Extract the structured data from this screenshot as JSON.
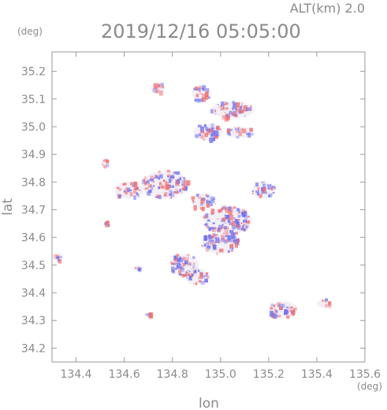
{
  "header": {
    "altitude": "ALT(km) 2.0",
    "datetime": "2019/12/16 05:05:00"
  },
  "axes": {
    "x_label": "lon",
    "y_label": "lat",
    "x_unit": "(deg)",
    "y_unit": "(deg)",
    "x_range": [
      134.3,
      135.6
    ],
    "y_range": [
      34.15,
      35.27
    ],
    "x_ticks": [
      134.4,
      134.6,
      134.8,
      135.0,
      135.2,
      135.4,
      135.6
    ],
    "x_tick_labels": [
      "134.4",
      "134.6",
      "134.8",
      "135.0",
      "135.2",
      "135.4",
      "135.6"
    ],
    "y_ticks": [
      34.2,
      34.3,
      34.4,
      34.5,
      34.6,
      34.7,
      34.8,
      34.9,
      35.0,
      35.1,
      35.2
    ],
    "y_tick_labels": [
      "34.2",
      "34.3",
      "34.4",
      "34.5",
      "34.6",
      "34.7",
      "34.8",
      "34.9",
      "35.0",
      "35.1",
      "35.2"
    ]
  },
  "colors": {
    "positive": "#f07070",
    "negative": "#7070f0",
    "axis": "#9a9a9a"
  },
  "echo_clusters": [
    {
      "lon": 134.74,
      "lat": 35.14,
      "rx": 0.03,
      "ry": 0.02
    },
    {
      "lon": 134.92,
      "lat": 35.12,
      "rx": 0.04,
      "ry": 0.03
    },
    {
      "lon": 135.05,
      "lat": 35.06,
      "rx": 0.09,
      "ry": 0.03
    },
    {
      "lon": 134.95,
      "lat": 34.98,
      "rx": 0.06,
      "ry": 0.03
    },
    {
      "lon": 135.08,
      "lat": 34.98,
      "rx": 0.06,
      "ry": 0.02
    },
    {
      "lon": 134.77,
      "lat": 34.79,
      "rx": 0.1,
      "ry": 0.05
    },
    {
      "lon": 134.62,
      "lat": 34.77,
      "rx": 0.06,
      "ry": 0.03
    },
    {
      "lon": 135.18,
      "lat": 34.77,
      "rx": 0.05,
      "ry": 0.03
    },
    {
      "lon": 134.93,
      "lat": 34.73,
      "rx": 0.05,
      "ry": 0.03
    },
    {
      "lon": 135.03,
      "lat": 34.66,
      "rx": 0.1,
      "ry": 0.05
    },
    {
      "lon": 135.0,
      "lat": 34.58,
      "rx": 0.08,
      "ry": 0.04
    },
    {
      "lon": 134.85,
      "lat": 34.5,
      "rx": 0.06,
      "ry": 0.04
    },
    {
      "lon": 134.9,
      "lat": 34.46,
      "rx": 0.05,
      "ry": 0.03
    },
    {
      "lon": 134.66,
      "lat": 34.49,
      "rx": 0.02,
      "ry": 0.01
    },
    {
      "lon": 135.26,
      "lat": 34.34,
      "rx": 0.06,
      "ry": 0.03
    },
    {
      "lon": 135.43,
      "lat": 34.36,
      "rx": 0.03,
      "ry": 0.015
    },
    {
      "lon": 134.7,
      "lat": 34.32,
      "rx": 0.015,
      "ry": 0.01
    },
    {
      "lon": 134.33,
      "lat": 34.53,
      "rx": 0.015,
      "ry": 0.015
    },
    {
      "lon": 134.52,
      "lat": 34.87,
      "rx": 0.015,
      "ry": 0.015
    },
    {
      "lon": 134.53,
      "lat": 34.65,
      "rx": 0.01,
      "ry": 0.01
    }
  ]
}
